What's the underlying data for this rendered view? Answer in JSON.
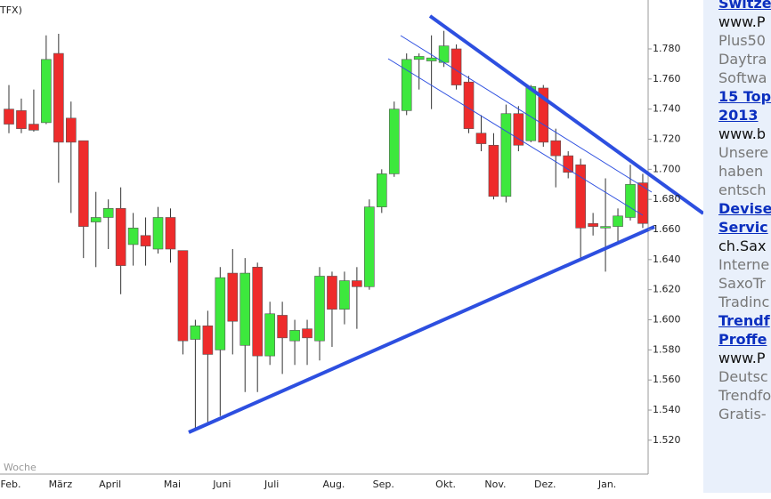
{
  "chart_data": {
    "type": "candlestick",
    "title": "TFX)",
    "x_axis_label": "Woche",
    "categories": [
      "Feb.",
      null,
      null,
      null,
      "März",
      null,
      null,
      null,
      "April",
      null,
      null,
      null,
      null,
      "Mai",
      null,
      null,
      null,
      "Juni",
      null,
      null,
      null,
      "Juli",
      null,
      null,
      null,
      null,
      "Aug.",
      null,
      null,
      null,
      "Sep.",
      null,
      null,
      null,
      null,
      "Okt.",
      null,
      null,
      null,
      "Nov.",
      null,
      null,
      null,
      "Dez.",
      null,
      null,
      null,
      null,
      "Jan.",
      null,
      null,
      null
    ],
    "open": [
      1.74,
      1.739,
      1.73,
      1.731,
      1.777,
      1.734,
      1.719,
      1.665,
      1.668,
      1.674,
      1.65,
      1.656,
      1.647,
      1.668,
      1.646,
      1.587,
      1.596,
      1.58,
      1.631,
      1.583,
      1.635,
      1.576,
      1.603,
      1.586,
      1.594,
      1.586,
      1.629,
      1.607,
      1.626,
      1.622,
      1.675,
      1.697,
      1.739,
      1.773,
      1.772,
      1.771,
      1.78,
      1.758,
      1.724,
      1.716,
      1.682,
      1.737,
      1.719,
      1.754,
      1.719,
      1.709,
      1.703,
      1.664,
      1.661,
      1.662,
      1.668,
      1.691
    ],
    "high": [
      1.756,
      1.747,
      1.753,
      1.789,
      1.79,
      1.745,
      1.719,
      1.685,
      1.68,
      1.688,
      1.671,
      1.668,
      1.675,
      1.674,
      1.646,
      1.6,
      1.606,
      1.635,
      1.647,
      1.641,
      1.638,
      1.612,
      1.612,
      1.6,
      1.6,
      1.635,
      1.632,
      1.632,
      1.635,
      1.68,
      1.7,
      1.745,
      1.777,
      1.777,
      1.789,
      1.792,
      1.783,
      1.762,
      1.736,
      1.724,
      1.743,
      1.742,
      1.756,
      1.756,
      1.727,
      1.712,
      1.707,
      1.671,
      1.694,
      1.674,
      1.703,
      1.697
    ],
    "low": [
      1.724,
      1.724,
      1.725,
      1.73,
      1.691,
      1.671,
      1.641,
      1.635,
      1.647,
      1.617,
      1.636,
      1.636,
      1.644,
      1.638,
      1.577,
      1.528,
      1.53,
      1.536,
      1.577,
      1.552,
      1.552,
      1.57,
      1.564,
      1.57,
      1.57,
      1.573,
      1.582,
      1.597,
      1.594,
      1.62,
      1.671,
      1.695,
      1.736,
      1.753,
      1.74,
      1.768,
      1.753,
      1.724,
      1.712,
      1.68,
      1.678,
      1.712,
      1.718,
      1.715,
      1.688,
      1.694,
      1.641,
      1.656,
      1.632,
      1.65,
      1.666,
      1.661
    ],
    "close": [
      1.73,
      1.727,
      1.726,
      1.773,
      1.718,
      1.718,
      1.662,
      1.668,
      1.674,
      1.636,
      1.661,
      1.649,
      1.668,
      1.647,
      1.586,
      1.596,
      1.577,
      1.628,
      1.599,
      1.631,
      1.576,
      1.604,
      1.588,
      1.593,
      1.588,
      1.629,
      1.607,
      1.626,
      1.622,
      1.675,
      1.697,
      1.74,
      1.773,
      1.775,
      1.774,
      1.782,
      1.756,
      1.727,
      1.717,
      1.682,
      1.737,
      1.716,
      1.755,
      1.718,
      1.709,
      1.698,
      1.661,
      1.662,
      1.662,
      1.669,
      1.69,
      1.664
    ],
    "up_color": "#3de83d",
    "down_color": "#ee2b2b",
    "ylim": [
      1.51,
      1.795
    ],
    "yticks": [
      {
        "value": 1.78,
        "label": "1.780"
      },
      {
        "value": 1.76,
        "label": "1.760"
      },
      {
        "value": 1.74,
        "label": "1.740"
      },
      {
        "value": 1.72,
        "label": "1.720"
      },
      {
        "value": 1.7,
        "label": "1.700"
      },
      {
        "value": 1.68,
        "label": "1.680"
      },
      {
        "value": 1.66,
        "label": "1.660"
      },
      {
        "value": 1.64,
        "label": "1.640"
      },
      {
        "value": 1.62,
        "label": "1.620"
      },
      {
        "value": 1.6,
        "label": "1.600"
      },
      {
        "value": 1.58,
        "label": "1.580"
      },
      {
        "value": 1.56,
        "label": "1.560"
      },
      {
        "value": 1.54,
        "label": "1.540"
      },
      {
        "value": 1.52,
        "label": "1.520"
      }
    ],
    "grid": false
  },
  "sidebar": {
    "ads": [
      {
        "title": [
          "Switze"
        ],
        "url": "www.P",
        "text": [
          "Plus50",
          "Daytra",
          "Softwa"
        ]
      },
      {
        "title": [
          "15 Top",
          "2013"
        ],
        "url": "www.b",
        "text": [
          "Unsere",
          "haben",
          "entsch"
        ]
      },
      {
        "title": [
          "Devise",
          "Servic"
        ],
        "url": "ch.Sax",
        "text": [
          "Interne",
          "SaxoTr",
          "Tradinc"
        ]
      },
      {
        "title": [
          "Trendf",
          "Proffe"
        ],
        "url": "www.P",
        "text": [
          "Deutsc",
          "Trendfo",
          "Gratis-"
        ]
      }
    ]
  }
}
